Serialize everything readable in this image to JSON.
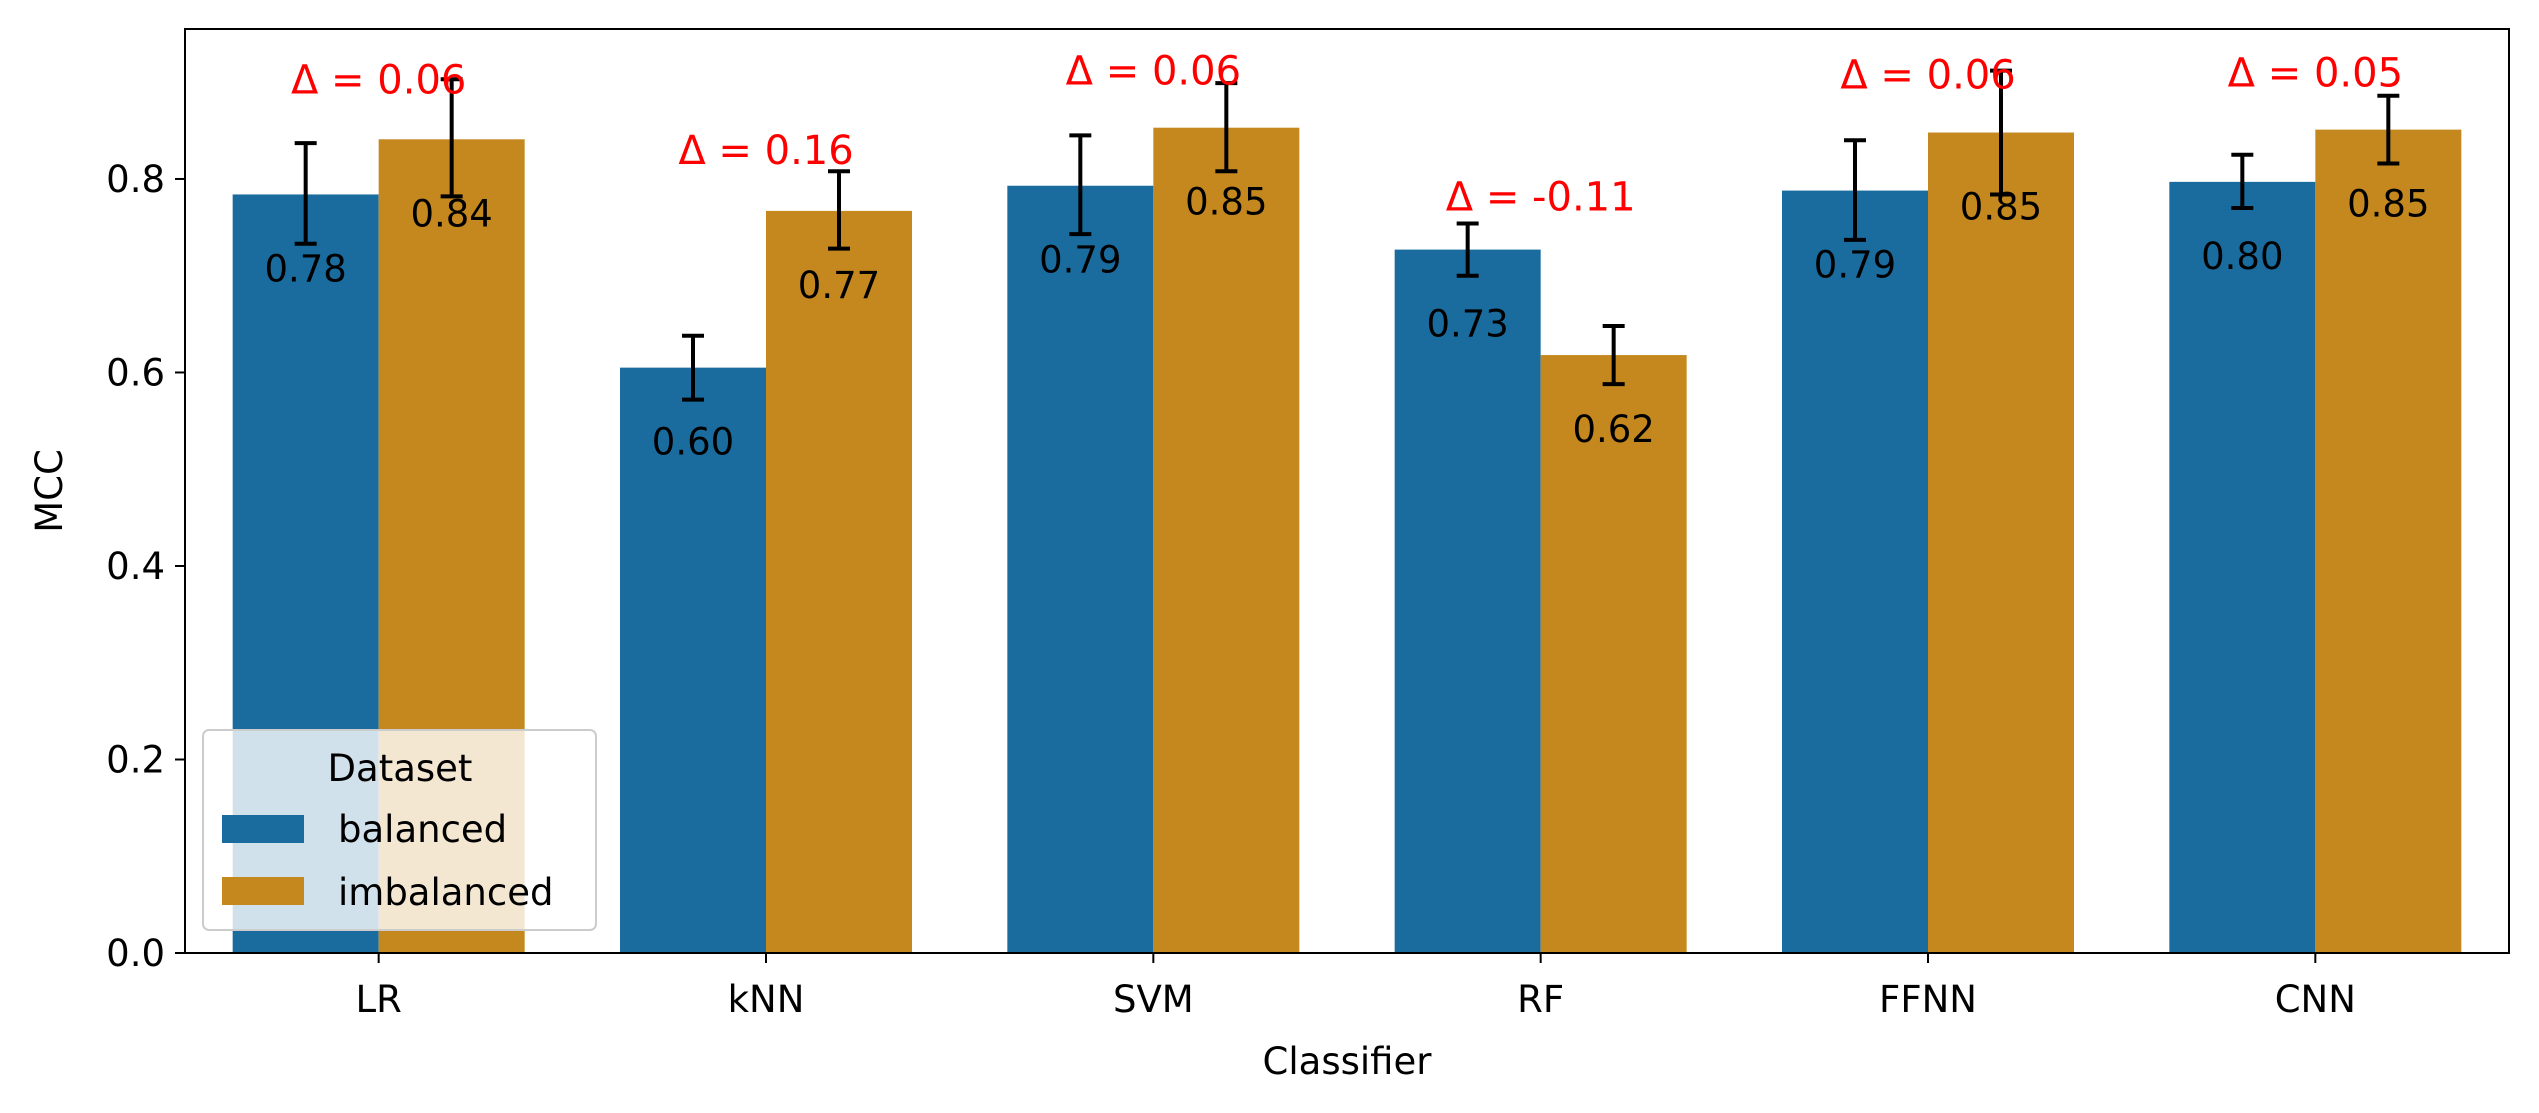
{
  "chart_data": {
    "type": "bar",
    "xlabel": "Classifier",
    "ylabel": "MCC",
    "ylim": [
      0,
      0.955
    ],
    "yticks": [
      "0.0",
      "0.2",
      "0.4",
      "0.6",
      "0.8"
    ],
    "ytick_values": [
      0,
      0.2,
      0.4,
      0.6,
      0.8
    ],
    "categories": [
      "LR",
      "kNN",
      "SVM",
      "RF",
      "FFNN",
      "CNN"
    ],
    "series": [
      {
        "name": "balanced",
        "color": "#1a6c9f",
        "values": [
          0.784,
          0.605,
          0.793,
          0.727,
          0.788,
          0.797
        ],
        "labels": [
          "0.78",
          "0.60",
          "0.79",
          "0.73",
          "0.79",
          "0.80"
        ],
        "err_low": [
          0.733,
          0.572,
          0.743,
          0.7,
          0.737,
          0.77
        ],
        "err_high": [
          0.837,
          0.638,
          0.845,
          0.754,
          0.84,
          0.825
        ]
      },
      {
        "name": "imbalanced",
        "color": "#c4881f",
        "values": [
          0.841,
          0.767,
          0.853,
          0.618,
          0.848,
          0.851
        ],
        "labels": [
          "0.84",
          "0.77",
          "0.85",
          "0.62",
          "0.85",
          "0.85"
        ],
        "err_low": [
          0.782,
          0.728,
          0.808,
          0.588,
          0.784,
          0.816
        ],
        "err_high": [
          0.903,
          0.808,
          0.899,
          0.648,
          0.912,
          0.886
        ]
      }
    ],
    "annotations": [
      "Δ = 0.06",
      "Δ = 0.16",
      "Δ = 0.06",
      "Δ = -0.11",
      "Δ = 0.06",
      "Δ = 0.05"
    ],
    "annotation_values": [
      0.903,
      0.83,
      0.912,
      0.782,
      0.908,
      0.91
    ],
    "legend": {
      "title": "Dataset",
      "placement": "lower-left"
    },
    "grid": false
  }
}
